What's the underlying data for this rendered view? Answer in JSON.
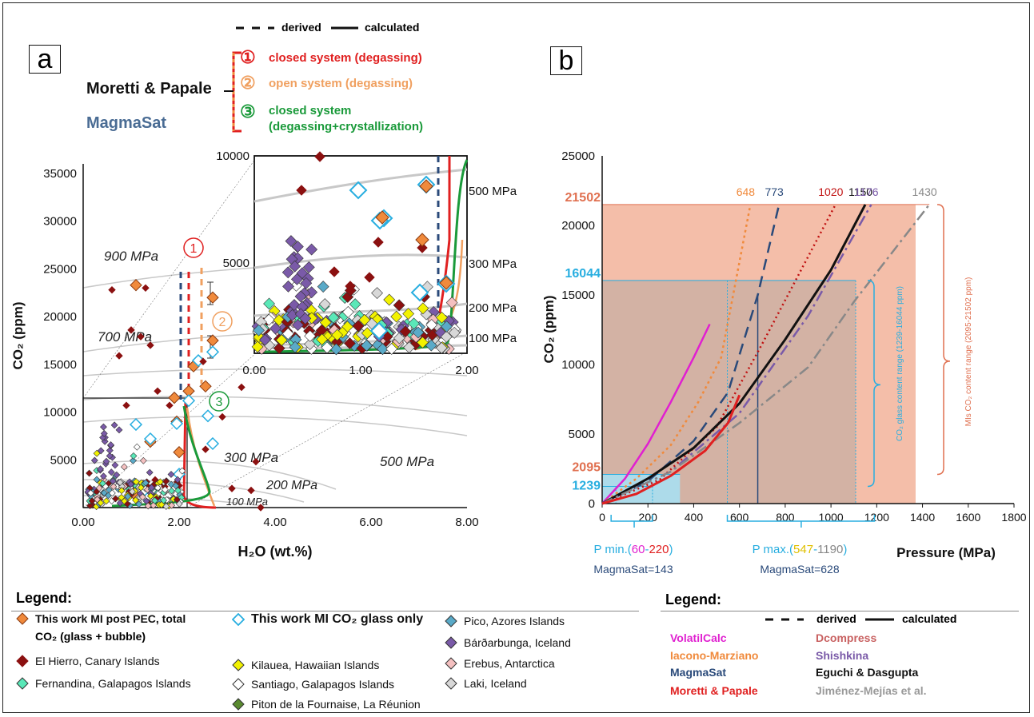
{
  "figure": {
    "panel_a_letter": "a",
    "panel_b_letter": "b",
    "top_legend": {
      "derived": "derived",
      "calculated": "calculated",
      "moretti": "Moretti & Papale",
      "magmasat": "MagmaSat",
      "items": [
        {
          "num": "①",
          "text": "closed system (degassing)",
          "color": "#e02020"
        },
        {
          "num": "②",
          "text": "open system (degassing)",
          "color": "#f0a060"
        },
        {
          "num": "③",
          "text": "closed system",
          "text2": "(degassing+crystallization)",
          "color": "#1a9a3a"
        }
      ]
    },
    "legend_a": {
      "title": "Legend:",
      "items": [
        {
          "text": "This work MI post PEC, total",
          "text2": "CO₂ (glass + bubble)",
          "fill": "#f08a3c",
          "stroke": "#8a3a10",
          "bold": true
        },
        {
          "text": "This work MI CO₂ glass only",
          "fill": "#ffffff",
          "stroke": "#28aee0",
          "bold": true
        },
        {
          "text": "Pico, Azores Islands",
          "fill": "#5aaac8",
          "stroke": "#333333"
        },
        {
          "text": "El Hierro, Canary Islands",
          "fill": "#8b1010",
          "stroke": "#8b1010"
        },
        {
          "text": "Kilauea, Hawaiian Islands",
          "fill": "#f2f200",
          "stroke": "#333333"
        },
        {
          "text": "Bárðarbunga, Iceland",
          "fill": "#7a5aa8",
          "stroke": "#333333"
        },
        {
          "text": "Fernandina, Galapagos Islands",
          "fill": "#5ae8b8",
          "stroke": "#333333"
        },
        {
          "text": "Santiago, Galapagos Islands",
          "fill": "#ffffff",
          "stroke": "#333333"
        },
        {
          "text": "Erebus, Antarctica",
          "fill": "#f4c0c0",
          "stroke": "#333333"
        },
        {
          "text": "Piton de la Fournaise, La Réunion",
          "fill": "#5a8a30",
          "stroke": "#333333"
        },
        {
          "text": "Laki, Iceland",
          "fill": "#d8d8d8",
          "stroke": "#333333"
        }
      ]
    },
    "legend_b": {
      "title": "Legend:",
      "derived": "derived",
      "calculated": "calculated",
      "models": [
        {
          "text": "VolatilCalc",
          "color": "#e020d0"
        },
        {
          "text": "Dcompress",
          "color": "#c86060"
        },
        {
          "text": "Iacono-Marziano",
          "color": "#f08a3c"
        },
        {
          "text": "Shishkina",
          "color": "#7a5aa8"
        },
        {
          "text": "MagmaSat",
          "color": "#2a4a7a"
        },
        {
          "text": "Eguchi & Dasgupta",
          "color": "#111111"
        },
        {
          "text": "Moretti & Papale",
          "color": "#e02020"
        },
        {
          "text": "Jiménez-Mejías et al.",
          "color": "#999999"
        }
      ]
    }
  },
  "chart_data": [
    {
      "type": "scatter",
      "panel": "a",
      "xlabel": "H₂O (wt.%)",
      "ylabel": "CO₂ (ppm)",
      "xlim": [
        0,
        8
      ],
      "ylim": [
        0,
        36000
      ],
      "xticks": [
        "0.00",
        "2.00",
        "4.00",
        "6.00",
        "8.00"
      ],
      "yticks": [
        "5000",
        "10000",
        "15000",
        "20000",
        "25000",
        "30000",
        "35000"
      ],
      "isobar_labels": [
        "900 MPa",
        "700 MPa",
        "500 MPa",
        "300 MPa",
        "200 MPa",
        "100 MPa"
      ],
      "inset": {
        "xlim": [
          0,
          2
        ],
        "ylim": [
          0,
          10000
        ],
        "xticks": [
          "0.00",
          "1.00",
          "2.00"
        ],
        "yticks": [
          "5000",
          "10000"
        ],
        "isobar_labels": [
          "500 MPa",
          "300 MPa",
          "200 MPa",
          "100 MPa"
        ]
      },
      "series": [
        {
          "name": "This work MI post PEC, total CO₂ (glass + bubble)",
          "points": [
            [
              1.1,
              23300
            ],
            [
              2.7,
              22000
            ],
            [
              2.3,
              14800
            ],
            [
              1.9,
              11500
            ],
            [
              2.2,
              12200
            ],
            [
              1.95,
              9000
            ],
            [
              2.0,
              5800
            ],
            [
              1.4,
              6900
            ],
            [
              2.55,
              12700
            ],
            [
              2.7,
              17500
            ],
            [
              1.05,
              1500
            ]
          ]
        },
        {
          "name": "This work MI CO₂ glass only",
          "points": [
            [
              2.7,
              16300
            ],
            [
              2.2,
              11200
            ],
            [
              2.4,
              15400
            ],
            [
              1.95,
              8800
            ],
            [
              2.7,
              6700
            ],
            [
              1.4,
              7200
            ],
            [
              1.1,
              8700
            ],
            [
              2.6,
              9600
            ],
            [
              2.0,
              3500
            ],
            [
              1.35,
              1000
            ]
          ]
        },
        {
          "name": "El Hierro, Canary Islands",
          "points": [
            [
              0.6,
              22800
            ],
            [
              1.3,
              23000
            ],
            [
              1.0,
              18600
            ],
            [
              1.2,
              17900
            ],
            [
              1.4,
              17000
            ],
            [
              0.75,
              15900
            ],
            [
              2.5,
              15300
            ],
            [
              3.3,
              12600
            ],
            [
              2.9,
              9500
            ],
            [
              1.8,
              10700
            ],
            [
              1.55,
              12200
            ],
            [
              0.9,
              10700
            ],
            [
              3.6,
              4800
            ],
            [
              2.55,
              6100
            ],
            [
              3.1,
              2000
            ],
            [
              3.5,
              1800
            ],
            [
              2.0,
              2300
            ],
            [
              1.5,
              2900
            ],
            [
              1.7,
              2200
            ],
            [
              3.7,
              0
            ]
          ]
        }
      ]
    },
    {
      "type": "line",
      "panel": "b",
      "xlabel": "Pressure (MPa)",
      "ylabel": "CO₂ (ppm)",
      "xlim": [
        0,
        1800
      ],
      "ylim": [
        0,
        25000
      ],
      "xticks": [
        "0",
        "200",
        "400",
        "600",
        "800",
        "1000",
        "1200",
        "1400",
        "1600",
        "1800"
      ],
      "yticks": [
        "0",
        "5000",
        "10000",
        "15000",
        "20000",
        "25000"
      ],
      "highlight_values": [
        "21502",
        "16044",
        "2095",
        "1239"
      ],
      "endpoint_labels": [
        {
          "text": "648",
          "color": "#f08a3c"
        },
        {
          "text": "773",
          "color": "#2a4a7a"
        },
        {
          "text": "1020",
          "color": "#c01010"
        },
        {
          "text": "1150",
          "color": "#111111"
        },
        {
          "text": "1176",
          "color": "#7a5aa8"
        },
        {
          "text": "1430",
          "color": "#888888"
        }
      ],
      "range_labels": {
        "glass": "CO₂ glass content range (1239-16044 ppm)",
        "mis": "MIs CO₂ content range (2095-21502 ppm)",
        "pmin_prefix": "P min.(",
        "pmin_a": "60",
        "pmin_dash": "-",
        "pmin_b": "220",
        "pmin_suffix": ")",
        "pmin_ms": "MagmaSat=143",
        "pmax_prefix": "P max.(",
        "pmax_a": "547",
        "pmax_dash": "-",
        "pmax_b": "1190",
        "pmax_suffix": ")",
        "pmax_ms": "MagmaSat=628"
      },
      "series": [
        {
          "name": "VolatilCalc",
          "color": "#e020d0",
          "style": "solid",
          "points": [
            [
              0,
              0
            ],
            [
              100,
              1800
            ],
            [
              200,
              4300
            ],
            [
              300,
              7300
            ],
            [
              400,
              10500
            ],
            [
              470,
              12900
            ]
          ]
        },
        {
          "name": "Iacono-Marziano",
          "color": "#f08a3c",
          "style": "mixed",
          "points": [
            [
              0,
              0
            ],
            [
              150,
              1800
            ],
            [
              300,
              4200
            ],
            [
              420,
              7300
            ],
            [
              520,
              10500
            ],
            [
              648,
              21502
            ]
          ]
        },
        {
          "name": "MagmaSat",
          "color": "#2a4a7a",
          "style": "dashed",
          "points": [
            [
              0,
              0
            ],
            [
              200,
              1600
            ],
            [
              400,
              4500
            ],
            [
              550,
              8000
            ],
            [
              680,
              15000
            ],
            [
              773,
              21502
            ]
          ]
        },
        {
          "name": "Dcompress",
          "color": "#c01010",
          "style": "dotted",
          "points": [
            [
              0,
              0
            ],
            [
              250,
              1700
            ],
            [
              500,
              5500
            ],
            [
              700,
              11500
            ],
            [
              1020,
              21502
            ]
          ]
        },
        {
          "name": "Eguchi & Dasgupta",
          "color": "#111111",
          "style": "solid",
          "points": [
            [
              0,
              0
            ],
            [
              200,
              1800
            ],
            [
              400,
              4000
            ],
            [
              600,
              7200
            ],
            [
              800,
              11800
            ],
            [
              1000,
              16800
            ],
            [
              1150,
              21502
            ]
          ]
        },
        {
          "name": "Shishkina",
          "color": "#7a5aa8",
          "style": "dashdot",
          "points": [
            [
              0,
              0
            ],
            [
              300,
              2300
            ],
            [
              600,
              6500
            ],
            [
              900,
              13500
            ],
            [
              1176,
              21502
            ]
          ]
        },
        {
          "name": "Jiménez-Mejías et al.",
          "color": "#888888",
          "style": "dashdot",
          "points": [
            [
              0,
              0
            ],
            [
              300,
              2300
            ],
            [
              600,
              5800
            ],
            [
              900,
              9800
            ],
            [
              1100,
              14500
            ],
            [
              1430,
              21502
            ]
          ]
        },
        {
          "name": "Moretti & Papale",
          "color": "#e02020",
          "style": "solid",
          "points": [
            [
              0,
              0
            ],
            [
              150,
              700
            ],
            [
              300,
              2000
            ],
            [
              450,
              3800
            ],
            [
              550,
              5800
            ],
            [
              600,
              7800
            ]
          ]
        }
      ]
    }
  ]
}
